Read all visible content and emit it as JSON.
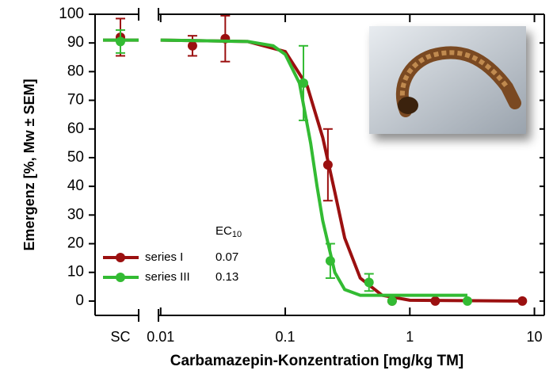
{
  "chart_data": {
    "type": "dose-response",
    "xlabel": "Carbamazepin-Konzentration [mg/kg TM]",
    "ylabel": "Emergenz [%, Mw ± SEM]",
    "control_label": "SC",
    "xlim": [
      0.0096,
      12
    ],
    "xticks": [
      0.01,
      0.1,
      1,
      10
    ],
    "xscale": "log",
    "ylim": [
      -5,
      100
    ],
    "yticks": [
      0,
      10,
      20,
      30,
      40,
      50,
      60,
      70,
      80,
      90,
      100
    ],
    "legend_header": {
      "main": "EC",
      "sub": "10"
    },
    "series": [
      {
        "name": "series I",
        "color": "#9b1010",
        "ec10": 0.07,
        "control": {
          "value": 92,
          "error": 6.5
        },
        "x": [
          0.018,
          0.033,
          0.22,
          0.72,
          1.6,
          8
        ],
        "values": [
          89,
          91.5,
          47.5,
          0,
          0,
          0
        ],
        "errors": [
          3.5,
          8,
          12.5,
          0,
          0,
          0
        ],
        "fit": {
          "x": [
            0.01,
            0.05,
            0.1,
            0.15,
            0.2,
            0.25,
            0.3,
            0.4,
            0.6,
            1,
            8
          ],
          "y": [
            91,
            90.5,
            87,
            75,
            57,
            38,
            22,
            8,
            2,
            0.3,
            0
          ]
        }
      },
      {
        "name": "series III",
        "color": "#33bb33",
        "ec10": 0.13,
        "control": {
          "value": 90.5,
          "error": 4
        },
        "x": [
          0.14,
          0.23,
          0.47,
          0.72,
          2.9
        ],
        "values": [
          76,
          14,
          6.5,
          0,
          0
        ],
        "errors": [
          13,
          6,
          3,
          0,
          0
        ],
        "fit": {
          "x": [
            0.01,
            0.05,
            0.08,
            0.1,
            0.13,
            0.16,
            0.18,
            0.2,
            0.25,
            0.3,
            0.4,
            2.9
          ],
          "y": [
            91,
            90.5,
            89,
            86,
            76,
            55,
            40,
            28,
            10,
            4,
            2,
            2
          ]
        }
      }
    ]
  }
}
